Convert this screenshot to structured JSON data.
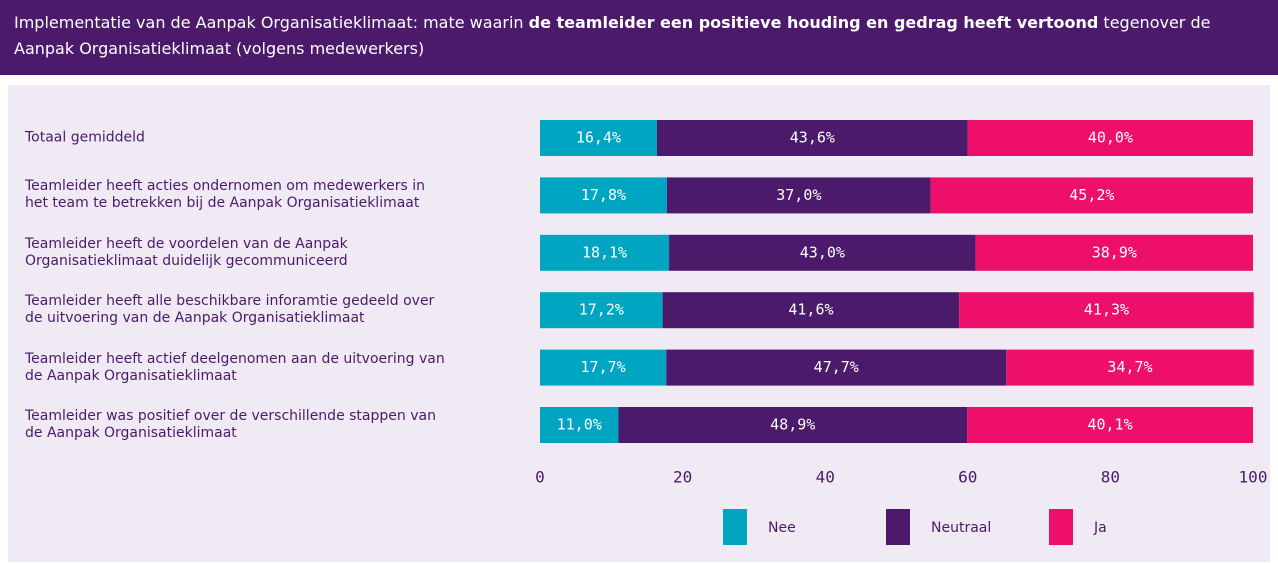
{
  "chart_data": {
    "type": "stacked-bar-horizontal",
    "title_parts": [
      "Implementatie van de Aanpak Organisatieklimaat: mate waarin ",
      "de teamleider een positieve houding en gedrag heeft vertoond",
      " tegenover de Aanpak Organisatieklimaat (volgens medewerkers)"
    ],
    "categories": [
      "Totaal gemiddeld",
      "Teamleider heeft acties ondernomen om medewerkers in\nhet team te betrekken bij de Aanpak Organisatieklimaat",
      "Teamleider heeft de voordelen van de Aanpak\nOrganisatieklimaat duidelijk gecommuniceerd",
      "Teamleider heeft alle beschikbare inforamtie gedeeld over\nde uitvoering van de Aanpak Organisatieklimaat",
      "Teamleider heeft actief deelgenomen aan de uitvoering van\nde  Aanpak Organisatieklimaat",
      "Teamleider was positief over de verschillende stappen van\nde Aanpak Organisatieklimaat"
    ],
    "series": [
      {
        "name": "Nee",
        "color": "#00a5c2",
        "values": [
          16.4,
          17.8,
          18.1,
          17.2,
          17.7,
          11.0
        ],
        "value_labels": [
          "16,4%",
          "17,8%",
          "18,1%",
          "17,2%",
          "17,7%",
          "11,0%"
        ]
      },
      {
        "name": "Neutraal",
        "color": "#4b1a6b",
        "values": [
          43.6,
          37.0,
          43.0,
          41.6,
          47.7,
          48.9
        ],
        "value_labels": [
          "43,6%",
          "37,0%",
          "43,0%",
          "41,6%",
          "47,7%",
          "48,9%"
        ]
      },
      {
        "name": "Ja",
        "color": "#ee0f6b",
        "values": [
          40.0,
          45.2,
          38.9,
          41.3,
          34.7,
          40.1
        ],
        "value_labels": [
          "40,0%",
          "45,2%",
          "38,9%",
          "41,3%",
          "34,7%",
          "40,1%"
        ]
      }
    ],
    "xlim": [
      0,
      100
    ],
    "xticks": [
      0,
      20,
      40,
      60,
      80,
      100
    ],
    "legend": "bottom"
  }
}
